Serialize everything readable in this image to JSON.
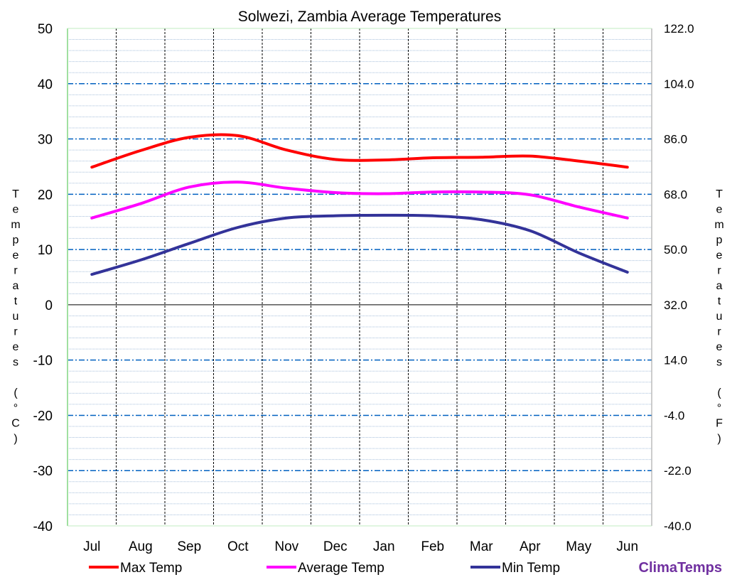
{
  "chart_data": {
    "type": "line",
    "title": "Solwezi, Zambia Average Temperatures",
    "ylabel_left": "Temperatures (°C)",
    "ylabel_right": "Temperatures (°F)",
    "categories": [
      "Jul",
      "Aug",
      "Sep",
      "Oct",
      "Nov",
      "Dec",
      "Jan",
      "Feb",
      "Mar",
      "Apr",
      "May",
      "Jun"
    ],
    "ylim": [
      -40,
      50
    ],
    "yticks_left": [
      "50",
      "40",
      "30",
      "20",
      "10",
      "0",
      "-10",
      "-20",
      "-30",
      "-40"
    ],
    "yticks_right": [
      "122.0",
      "104.0",
      "86.0",
      "68.0",
      "50.0",
      "32.0",
      "14.0",
      "-4.0",
      "-22.0",
      "-40.0"
    ],
    "grid": true,
    "legend_placement": "bottom",
    "series": [
      {
        "name": "Max Temp",
        "color": "#ff0000",
        "values": [
          24.9,
          27.9,
          30.3,
          30.6,
          28.0,
          26.3,
          26.2,
          26.6,
          26.7,
          26.9,
          26.0,
          24.9
        ]
      },
      {
        "name": "Average Temp",
        "color": "#ff00ff",
        "values": [
          15.7,
          18.3,
          21.3,
          22.2,
          21.1,
          20.3,
          20.1,
          20.4,
          20.4,
          19.9,
          17.7,
          15.7
        ]
      },
      {
        "name": "Min Temp",
        "color": "#333399",
        "values": [
          5.5,
          8.1,
          11.1,
          14.0,
          15.7,
          16.1,
          16.2,
          16.1,
          15.4,
          13.4,
          9.4,
          5.9
        ]
      }
    ]
  },
  "brand": {
    "text": "ClimaTemps",
    "color": "#7030a0"
  }
}
